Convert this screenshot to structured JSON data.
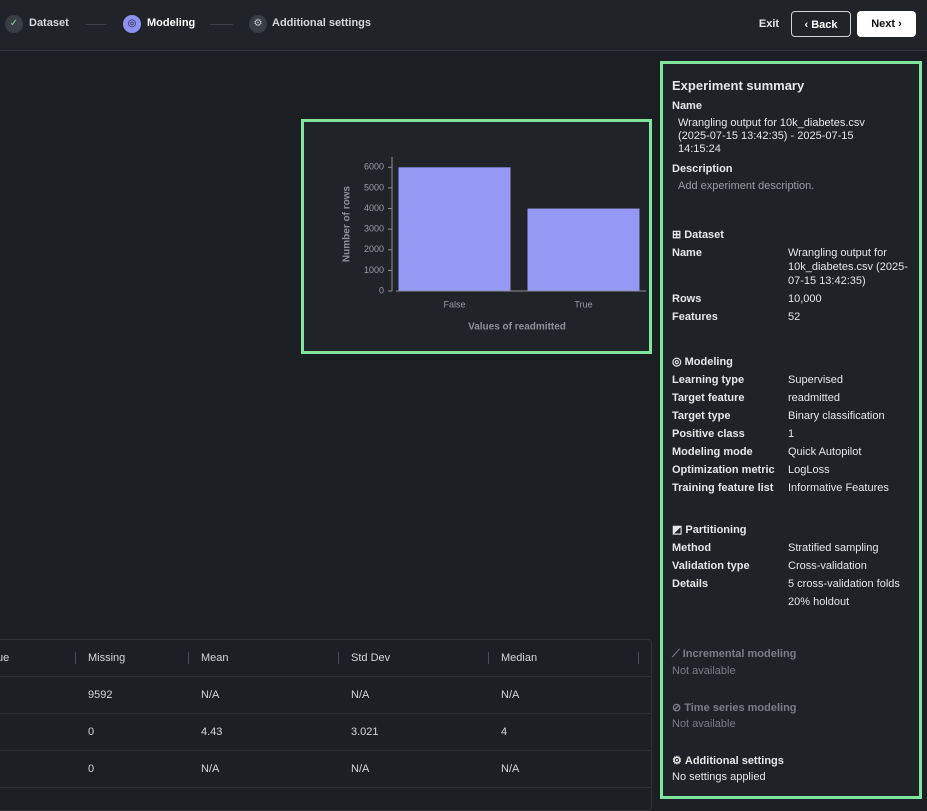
{
  "nav": {
    "steps": [
      "Dataset",
      "Modeling",
      "Additional settings"
    ],
    "exit": "Exit",
    "back": "Back",
    "next": "Next"
  },
  "chart_data": {
    "type": "bar",
    "y_label": "Number of rows",
    "x_label": "Values of readmitted",
    "categories": [
      "False",
      "True"
    ],
    "values": [
      6000,
      4000
    ],
    "color": "#9599f4",
    "ylim": [
      0,
      6500
    ],
    "yticks": [
      0,
      1000,
      2000,
      3000,
      4000,
      5000,
      6000
    ]
  },
  "table": {
    "headers": [
      "ue",
      "Missing",
      "Mean",
      "Std Dev",
      "Median"
    ],
    "rows": [
      [
        "",
        "9592",
        "N/A",
        "N/A",
        "N/A"
      ],
      [
        "",
        "0",
        "4.43",
        "3.021",
        "4"
      ],
      [
        "",
        "0",
        "N/A",
        "N/A",
        "N/A"
      ]
    ]
  },
  "summary": {
    "title": "Experiment summary",
    "name_label": "Name",
    "name_value": "Wrangling output for 10k_diabetes.csv (2025-07-15 13:42:35) - 2025-07-15 14:15:24",
    "description_label": "Description",
    "description_value": "Add experiment description.",
    "sections": [
      {
        "heading": "Dataset",
        "rows": [
          {
            "label": "Name",
            "values": [
              "Wrangling output for 10k_diabetes.csv (2025-07-15 13:42:35)"
            ]
          },
          {
            "label": "Rows",
            "values": [
              "10,000"
            ]
          },
          {
            "label": "Features",
            "values": [
              "52"
            ]
          }
        ]
      },
      {
        "heading": "Modeling",
        "rows": [
          {
            "label": "Learning type",
            "values": [
              "Supervised"
            ]
          },
          {
            "label": "Target feature",
            "values": [
              "readmitted"
            ]
          },
          {
            "label": "Target type",
            "values": [
              "Binary classification"
            ]
          },
          {
            "label": "Positive class",
            "values": [
              "1"
            ]
          },
          {
            "label": "Modeling mode",
            "values": [
              "Quick Autopilot"
            ]
          },
          {
            "label": "Optimization metric",
            "values": [
              "LogLoss"
            ]
          },
          {
            "label": "Training feature list",
            "values": [
              "Informative Features"
            ]
          }
        ]
      },
      {
        "heading": "Partitioning",
        "rows": [
          {
            "label": "Method",
            "values": [
              "Stratified sampling"
            ]
          },
          {
            "label": "Validation type",
            "values": [
              "Cross-validation"
            ]
          },
          {
            "label": "Details",
            "values": [
              "5 cross-validation folds",
              "20% holdout"
            ]
          }
        ]
      },
      {
        "heading": "Incremental modeling",
        "text": "Not available"
      },
      {
        "heading": "Time series modeling",
        "text": "Not available"
      },
      {
        "heading": "Additional settings",
        "text": "No settings applied"
      }
    ]
  }
}
